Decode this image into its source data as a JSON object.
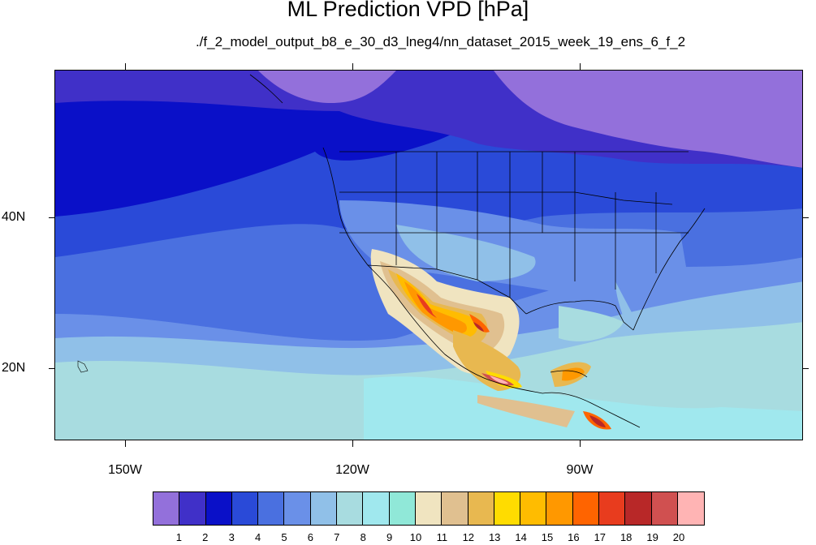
{
  "title": "ML Prediction VPD [hPa]",
  "subtitle": "./f_2_model_output_b8_e_30_d3_lneg4/nn_dataset_2015_week_19_ens_6_f_2",
  "map": {
    "lat_labels": [
      "40N",
      "20N"
    ],
    "lon_labels": [
      "150W",
      "120W",
      "90W"
    ],
    "region": "North America / Eastern Pacific"
  },
  "colorbar": {
    "labels": [
      "1",
      "2",
      "3",
      "4",
      "5",
      "6",
      "7",
      "8",
      "9",
      "10",
      "11",
      "12",
      "13",
      "14",
      "15",
      "16",
      "17",
      "18",
      "19",
      "20"
    ],
    "colors": [
      "#9370db",
      "#4030c8",
      "#0a10c8",
      "#2a4ad8",
      "#4a70e0",
      "#6a90e8",
      "#90c0e8",
      "#a8dce0",
      "#a0e8ee",
      "#90e8d8",
      "#f0e4c0",
      "#e0c090",
      "#e8b850",
      "#ffdc00",
      "#ffbc00",
      "#ff9800",
      "#ff6400",
      "#e83c1e",
      "#b82828",
      "#d05050",
      "#ffb4b4"
    ]
  }
}
